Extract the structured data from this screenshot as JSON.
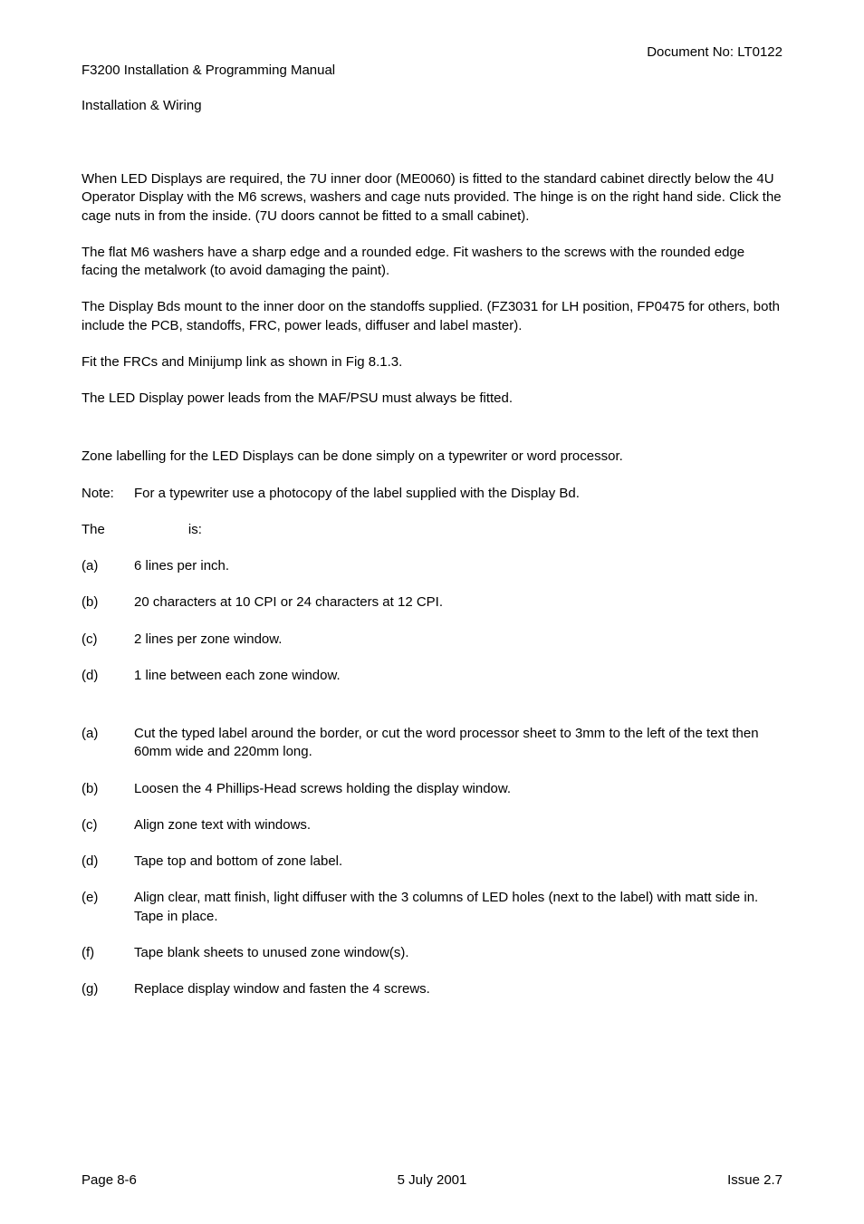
{
  "header": {
    "left_line1": "F3200 Installation & Programming Manual",
    "left_line2": "Installation & Wiring",
    "right": "Document No: LT0122"
  },
  "paragraphs": {
    "p1": "When LED Displays are required, the 7U inner door (ME0060) is fitted to the standard cabinet directly below the 4U Operator Display with the M6 screws, washers and cage nuts provided.  The hinge is on the right hand side.  Click the cage nuts in from the inside.  (7U doors cannot be fitted to a small cabinet).",
    "p2": "The flat M6 washers have a sharp edge and a rounded edge.  Fit washers to the screws with the rounded edge facing the metalwork (to avoid damaging the paint).",
    "p3": "The Display Bds mount to the inner door on the standoffs supplied.  (FZ3031 for LH position, FP0475 for others, both include the PCB, standoffs, FRC, power leads, diffuser and label master).",
    "p4": "Fit the FRCs and Minijump link as shown in Fig 8.1.3.",
    "p5": "The LED Display power leads from the MAF/PSU must always be fitted.",
    "p6": "Zone labelling for the LED Displays can be done simply on a typewriter or word processor.",
    "note_label": "Note:",
    "note_body": "For a typewriter use a photocopy of the label supplied with the Display Bd.",
    "the": "The",
    "is": "is:"
  },
  "format_list": [
    {
      "label": "(a)",
      "text": "6 lines per inch."
    },
    {
      "label": "(b)",
      "text": "20 characters at 10 CPI or 24 characters at 12 CPI."
    },
    {
      "label": "(c)",
      "text": "2 lines per zone window."
    },
    {
      "label": "(d)",
      "text": "1 line between each zone window."
    }
  ],
  "fit_list": [
    {
      "label": "(a)",
      "text": "Cut the typed label around the border, or cut the word processor sheet to 3mm to the left of the text then 60mm wide and 220mm long."
    },
    {
      "label": "(b)",
      "text": "Loosen the 4 Phillips-Head screws holding the display window."
    },
    {
      "label": "(c)",
      "text": "Align zone text with windows."
    },
    {
      "label": "(d)",
      "text": "Tape top and bottom of zone label."
    },
    {
      "label": "(e)",
      "text": "Align clear, matt finish, light diffuser with the 3 columns of LED holes (next to the label) with matt side in.  Tape in place."
    },
    {
      "label": "(f)",
      "text": "Tape blank sheets to unused zone window(s)."
    },
    {
      "label": "(g)",
      "text": "Replace display window and fasten the 4 screws."
    }
  ],
  "footer": {
    "left": "Page 8-6",
    "center": "5 July 2001",
    "right": "Issue 2.7"
  }
}
